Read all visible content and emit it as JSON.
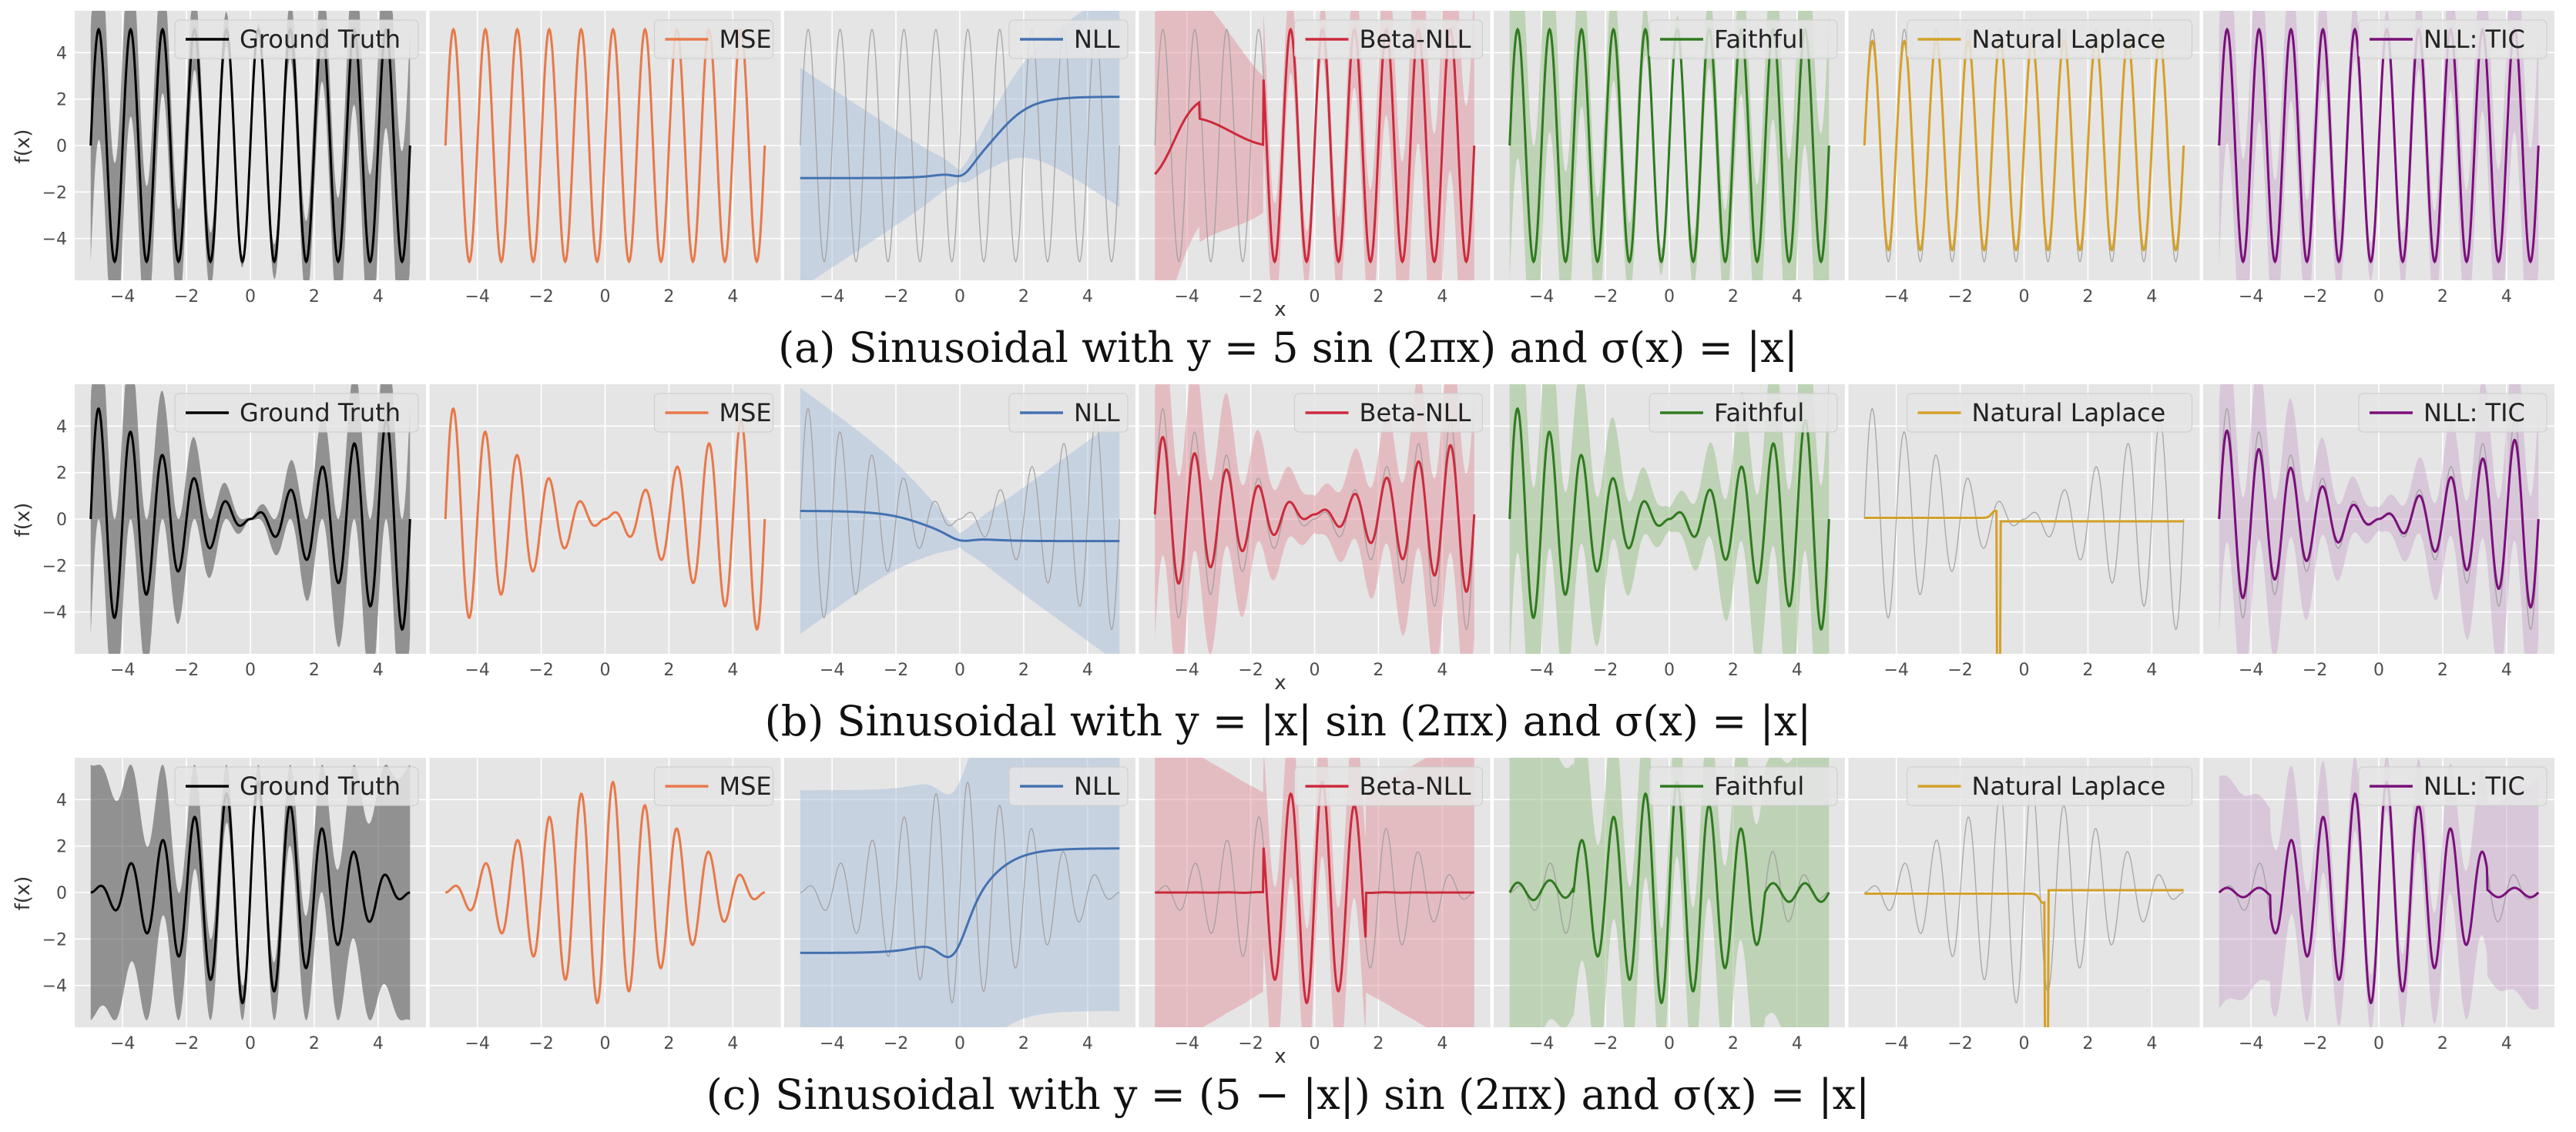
{
  "figure": {
    "models": [
      "Ground Truth",
      "MSE",
      "NLL",
      "Beta-NLL",
      "Faithful",
      "Natural Laplace",
      "NLL: TIC"
    ],
    "model_colors": [
      "#000000",
      "#e8784a",
      "#4472b0",
      "#cc2a3c",
      "#2f7a1f",
      "#d4a02a",
      "#7a0f7a"
    ],
    "band_colors": [
      "#4d4d4d",
      "#ffffff",
      "#aac0de",
      "#e08a94",
      "#9fc28e",
      "#ffffff",
      "#c39ac8"
    ],
    "truth_trace_color": "#9a9a9a",
    "panel_background": "#e5e5e5",
    "ylabel": "f(x)",
    "xlabel": "x",
    "xticks": [
      "−4",
      "−2",
      "0",
      "2",
      "4"
    ],
    "yticks": [
      "4",
      "2",
      "0",
      "−2",
      "−4"
    ]
  },
  "chart_data": [
    {
      "type": "line",
      "caption": "(a) Sinusoidal with y = 5 sin (2πx) and σ(x) = |x|",
      "truth": "5*sin(2*pi*x)",
      "noise_sigma": "|x|",
      "x_range": [
        -5,
        5
      ],
      "ylim": [
        -5.8,
        5.8
      ],
      "xlim": [
        -5.5,
        5.5
      ],
      "grid": true,
      "legend_position": "top-right",
      "series": [
        {
          "name": "Ground Truth",
          "mean": "5*sin(2*pi*x)",
          "std": "|x|",
          "band_opacity": 0.45
        },
        {
          "name": "MSE",
          "mean": "5*sin(2*pi*x)",
          "std": "0"
        },
        {
          "name": "NLL",
          "mean": "-1.4 + 3.4*sigmoid(1.6*(x-1)) - 0.3*exp(-(x+0.2)^2*4)",
          "std": "|x| (approx, 0.2 at x=0)",
          "band_opacity": 0.5
        },
        {
          "name": "Beta-NLL",
          "mean": "5*sin(2*pi*x) for x>0; flat ~1 then drop for x<-2",
          "std": "|x|",
          "band_opacity": 0.45
        },
        {
          "name": "Faithful",
          "mean": "5*sin(2*pi*x)",
          "std": "|x|",
          "band_opacity": 0.55
        },
        {
          "name": "Natural Laplace",
          "mean": "5*sin(2*pi*x)",
          "std": "0"
        },
        {
          "name": "NLL: TIC",
          "mean": "5*sin(2*pi*x)",
          "std": "|x|",
          "band_opacity": 0.4
        }
      ]
    },
    {
      "type": "line",
      "caption": "(b) Sinusoidal with y = |x| sin (2πx) and σ(x) = |x|",
      "truth": "|x|*sin(2*pi*x)",
      "noise_sigma": "|x|",
      "x_range": [
        -5,
        5
      ],
      "ylim": [
        -5.8,
        5.8
      ],
      "xlim": [
        -5.5,
        5.5
      ],
      "grid": true,
      "legend_position": "top-right",
      "series": [
        {
          "name": "Ground Truth",
          "mean": "|x|*sin(2*pi*x)",
          "std": "|x|",
          "band_opacity": 0.45
        },
        {
          "name": "MSE",
          "mean": "|x|*sin(2*pi*x)",
          "std": "0"
        },
        {
          "name": "NLL",
          "mean": "0.3 - 1.3*sigmoid(1.5*(x+1)) (approx, ~-1 for x>0)",
          "std": "|x|",
          "band_opacity": 0.5
        },
        {
          "name": "Beta-NLL",
          "mean": "0.7*|x|*sin(2*pi*x)",
          "std": "|x|",
          "band_opacity": 0.45
        },
        {
          "name": "Faithful",
          "mean": "|x|*sin(2*pi*x)",
          "std": "|x|",
          "band_opacity": 0.55
        },
        {
          "name": "Natural Laplace",
          "mean": "~0, spike near x=-0.8 down to below -5",
          "std": "0"
        },
        {
          "name": "NLL: TIC",
          "mean": "0.8*|x|*sin(2*pi*x)",
          "std": "|x|",
          "band_opacity": 0.4
        }
      ]
    },
    {
      "type": "line",
      "caption": "(c) Sinusoidal with y = (5 − |x|) sin (2πx) and σ(x) = |x|",
      "truth": "(5-|x|)*sin(2*pi*x)",
      "noise_sigma": "|x|",
      "x_range": [
        -5,
        5
      ],
      "ylim": [
        -5.8,
        5.8
      ],
      "xlim": [
        -5.5,
        5.5
      ],
      "grid": true,
      "legend_position": "top-right",
      "series": [
        {
          "name": "Ground Truth",
          "mean": "(5-|x|)*sin(2*pi*x)",
          "std": "|x|",
          "band_opacity": 0.45
        },
        {
          "name": "MSE",
          "mean": "(5-|x|)*sin(2*pi*x)",
          "std": "0"
        },
        {
          "name": "NLL",
          "mean": "-2.6 + tanh-like rise to 1.9; dip to -4 near x=-0.2",
          "std": "very large (fills panel)",
          "band_opacity": 0.5
        },
        {
          "name": "Beta-NLL",
          "mean": "(5-|x|)*sin(2*pi*x) within |x|<1.5, ~0 elsewhere",
          "std": "|x|",
          "band_opacity": 0.45
        },
        {
          "name": "Faithful",
          "mean": "(5-|x|)*sin(2*pi*x) within -3<x<3, small outside",
          "std": "|x| (large)",
          "band_opacity": 0.55
        },
        {
          "name": "Natural Laplace",
          "mean": "~0, spike near x=0.7 down to below -5",
          "std": "0"
        },
        {
          "name": "NLL: TIC",
          "mean": "(5-|x|)*sin(2*pi*x) within -3.5<x<3.5",
          "std": "|x|",
          "band_opacity": 0.4
        }
      ]
    }
  ]
}
